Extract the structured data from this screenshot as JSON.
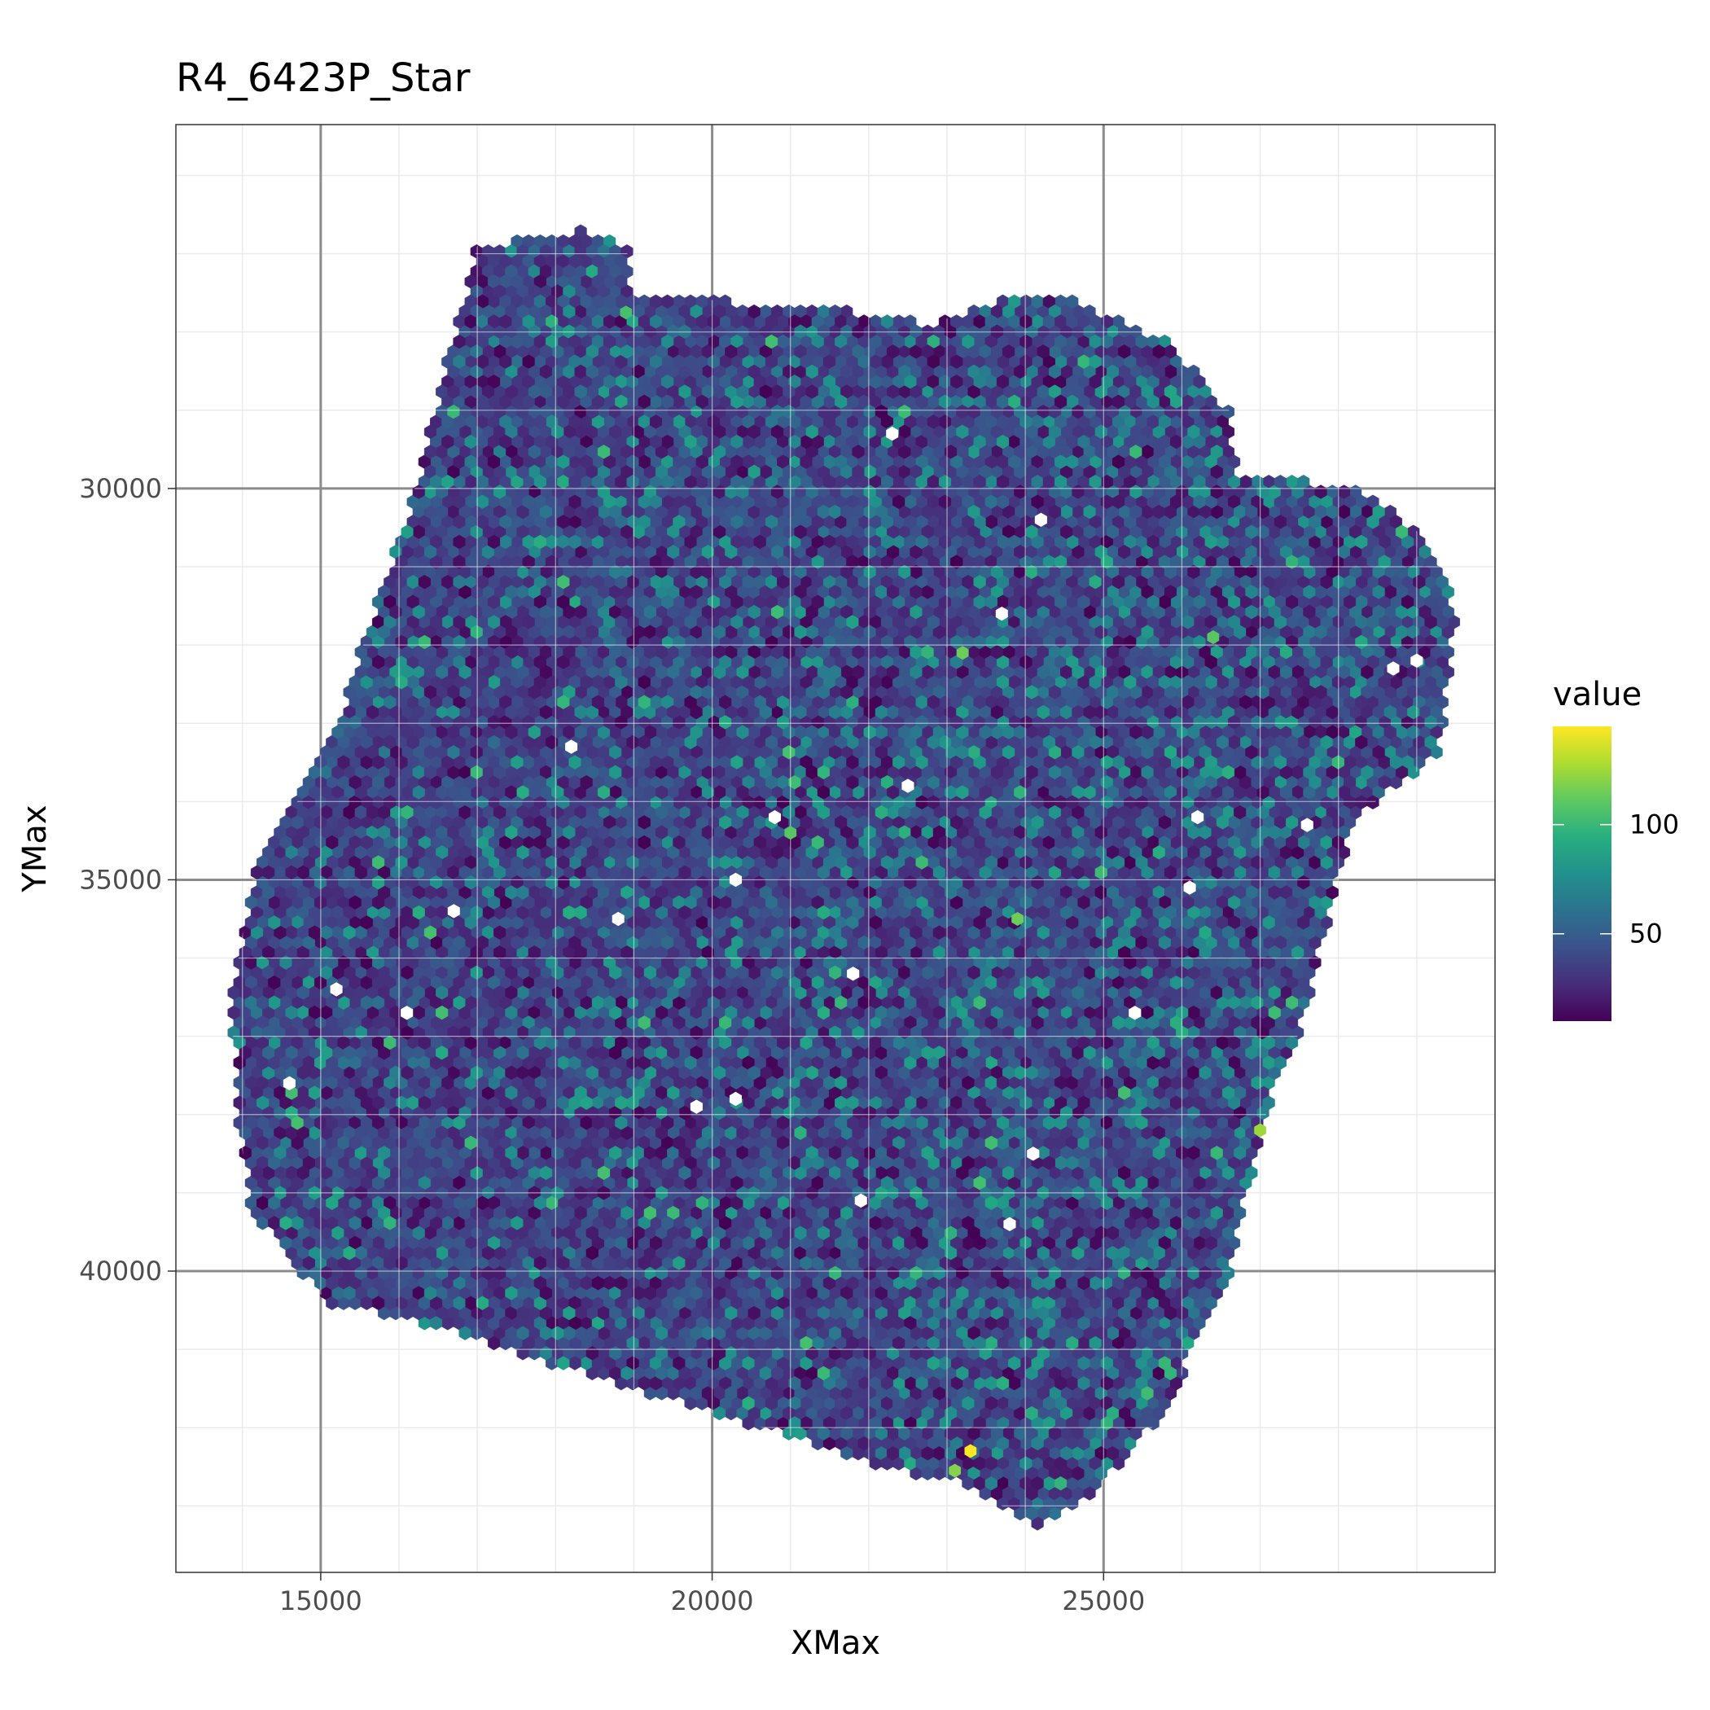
{
  "chart_data": {
    "type": "heatmap",
    "subtype": "hexbin",
    "title": "R4_6423P_Star",
    "xlabel": "XMax",
    "ylabel": "YMax",
    "xlim": [
      13150,
      30000
    ],
    "ylim": [
      25350,
      43850
    ],
    "y_reversed": true,
    "x_ticks": [
      15000,
      20000,
      25000
    ],
    "x_tick_labels": [
      "15000",
      "20000",
      "25000"
    ],
    "y_ticks": [
      30000,
      35000,
      40000
    ],
    "y_tick_labels": [
      "30000",
      "35000",
      "40000"
    ],
    "x_minor": [
      14000,
      16000,
      17000,
      18000,
      19000,
      21000,
      22000,
      23000,
      24000,
      26000,
      27000,
      28000,
      29000
    ],
    "y_minor": [
      26000,
      27000,
      28000,
      29000,
      31000,
      32000,
      33000,
      34000,
      36000,
      37000,
      38000,
      39000,
      41000,
      42000,
      43000
    ],
    "grid": true,
    "legend": {
      "title": "value",
      "position": "right",
      "colormap": "viridis",
      "range": [
        10,
        145
      ],
      "ticks": [
        50,
        100
      ],
      "tick_labels": [
        "50",
        "100"
      ]
    },
    "region_outline": [
      [
        17000,
        26900
      ],
      [
        18400,
        26700
      ],
      [
        18900,
        26900
      ],
      [
        19000,
        27500
      ],
      [
        20100,
        27600
      ],
      [
        21500,
        27700
      ],
      [
        22800,
        27900
      ],
      [
        23900,
        27500
      ],
      [
        24600,
        27600
      ],
      [
        25800,
        28100
      ],
      [
        26600,
        29000
      ],
      [
        26700,
        29800
      ],
      [
        28300,
        30000
      ],
      [
        29200,
        30700
      ],
      [
        29500,
        31600
      ],
      [
        29300,
        33400
      ],
      [
        28200,
        34200
      ],
      [
        27800,
        35800
      ],
      [
        27600,
        36700
      ],
      [
        27100,
        37900
      ],
      [
        26800,
        39100
      ],
      [
        26600,
        40100
      ],
      [
        26100,
        41100
      ],
      [
        25800,
        41800
      ],
      [
        24700,
        43000
      ],
      [
        24200,
        43250
      ],
      [
        23100,
        42700
      ],
      [
        22100,
        42500
      ],
      [
        21300,
        42200
      ],
      [
        20300,
        41900
      ],
      [
        19300,
        41600
      ],
      [
        18000,
        41200
      ],
      [
        17400,
        41000
      ],
      [
        16400,
        40700
      ],
      [
        15100,
        40400
      ],
      [
        14700,
        40000
      ],
      [
        14100,
        39200
      ],
      [
        13950,
        38100
      ],
      [
        13850,
        36600
      ],
      [
        14050,
        35400
      ],
      [
        14200,
        34600
      ],
      [
        14650,
        34100
      ],
      [
        15200,
        33000
      ],
      [
        15850,
        31100
      ],
      [
        16200,
        30000
      ],
      [
        16600,
        28400
      ]
    ],
    "highlights": [
      {
        "x": 23300,
        "y": 42300,
        "value": 145
      },
      {
        "x": 27000,
        "y": 38200,
        "value": 125
      },
      {
        "x": 26400,
        "y": 31900,
        "value": 110
      },
      {
        "x": 23200,
        "y": 32100,
        "value": 115
      },
      {
        "x": 23100,
        "y": 42550,
        "value": 120
      },
      {
        "x": 23900,
        "y": 35500,
        "value": 115
      },
      {
        "x": 21000,
        "y": 34400,
        "value": 110
      },
      {
        "x": 18900,
        "y": 27750,
        "value": 105
      }
    ],
    "white_gaps": [
      [
        22300,
        29300
      ],
      [
        24200,
        30400
      ],
      [
        23700,
        31600
      ],
      [
        18200,
        33300
      ],
      [
        20800,
        34200
      ],
      [
        20300,
        35000
      ],
      [
        18800,
        35500
      ],
      [
        15200,
        36400
      ],
      [
        16100,
        36700
      ],
      [
        19800,
        37900
      ],
      [
        20300,
        37800
      ],
      [
        21800,
        36200
      ],
      [
        25400,
        36700
      ],
      [
        24100,
        38500
      ],
      [
        23800,
        39400
      ],
      [
        21900,
        39100
      ],
      [
        26200,
        34200
      ],
      [
        27600,
        34300
      ],
      [
        26100,
        35100
      ],
      [
        28700,
        32300
      ],
      [
        29000,
        32200
      ],
      [
        16700,
        35400
      ],
      [
        14600,
        37600
      ],
      [
        22500,
        33800
      ]
    ]
  }
}
